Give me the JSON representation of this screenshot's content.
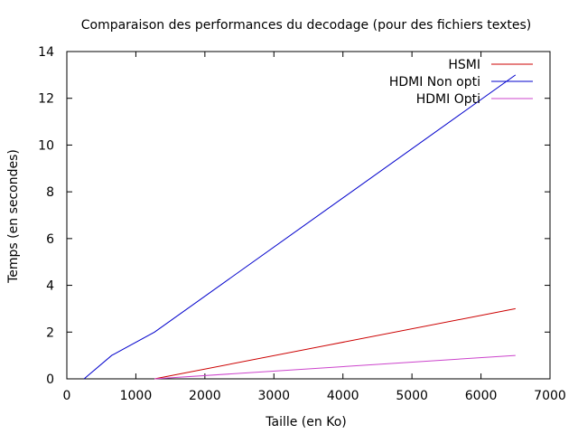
{
  "chart_data": {
    "type": "line",
    "title": "Comparaison des performances du decodage (pour des fichiers textes)",
    "xlabel": "Taille (en Ko)",
    "ylabel": "Temps (en secondes)",
    "xlim": [
      0,
      7000
    ],
    "ylim": [
      0,
      14
    ],
    "xticks": [
      0,
      1000,
      2000,
      3000,
      4000,
      5000,
      6000,
      7000
    ],
    "yticks": [
      0,
      2,
      4,
      6,
      8,
      10,
      12,
      14
    ],
    "grid": false,
    "legend_position": "top-right",
    "series": [
      {
        "name": "HSMI",
        "color": "#cc0000",
        "x": [
          1270,
          6500
        ],
        "y": [
          0,
          3
        ]
      },
      {
        "name": "HDMI Non opti",
        "color": "#0000cc",
        "x": [
          250,
          650,
          1270,
          6500
        ],
        "y": [
          0,
          1,
          2,
          13
        ]
      },
      {
        "name": "HDMI Opti",
        "color": "#cc44cc",
        "x": [
          1270,
          6500
        ],
        "y": [
          0,
          1
        ]
      }
    ]
  }
}
